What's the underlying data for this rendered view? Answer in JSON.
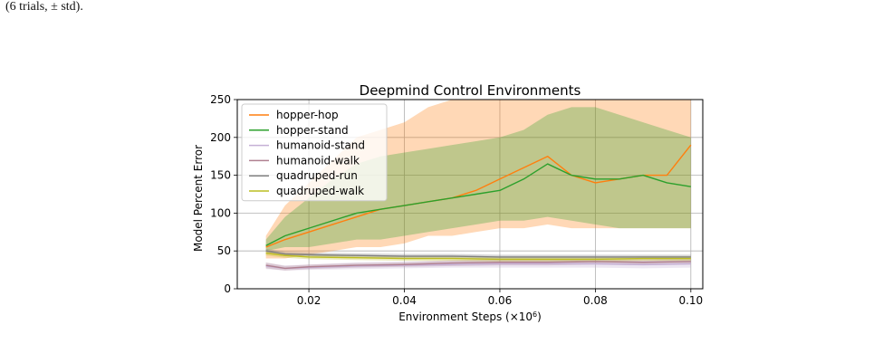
{
  "caption": {
    "top": "(6 trials, ± std)."
  },
  "chart_data": {
    "type": "line",
    "title": "Deepmind Control Environments",
    "xlabel": "Environment Steps (×10⁶)",
    "ylabel": "Model Percent Error",
    "xlim": [
      0.005,
      0.1025
    ],
    "ylim": [
      0,
      250
    ],
    "xticks": [
      0.02,
      0.04,
      0.06,
      0.08,
      0.1
    ],
    "xtick_labels": [
      "0.02",
      "0.04",
      "0.06",
      "0.08",
      "0.10"
    ],
    "yticks": [
      0,
      50,
      100,
      150,
      200,
      250
    ],
    "ytick_labels": [
      "0",
      "50",
      "100",
      "150",
      "200",
      "250"
    ],
    "grid": true,
    "legend_position": "top-left",
    "series": [
      {
        "name": "hopper-hop",
        "color": "#ff7f0e",
        "x": [
          0.011,
          0.015,
          0.02,
          0.025,
          0.03,
          0.035,
          0.04,
          0.045,
          0.05,
          0.055,
          0.06,
          0.065,
          0.07,
          0.075,
          0.08,
          0.085,
          0.09,
          0.095,
          0.1
        ],
        "values": [
          55,
          65,
          75,
          85,
          95,
          105,
          110,
          115,
          120,
          130,
          145,
          160,
          175,
          150,
          140,
          145,
          150,
          150,
          190
        ],
        "band_low": [
          40,
          40,
          45,
          50,
          55,
          55,
          60,
          70,
          70,
          75,
          80,
          80,
          85,
          80,
          80,
          80,
          80,
          80,
          80
        ],
        "band_high": [
          70,
          110,
          140,
          170,
          200,
          210,
          220,
          240,
          250,
          250,
          250,
          250,
          250,
          250,
          250,
          250,
          250,
          250,
          250
        ]
      },
      {
        "name": "hopper-stand",
        "color": "#2ca02c",
        "x": [
          0.011,
          0.015,
          0.02,
          0.025,
          0.03,
          0.035,
          0.04,
          0.045,
          0.05,
          0.055,
          0.06,
          0.065,
          0.07,
          0.075,
          0.08,
          0.085,
          0.09,
          0.095,
          0.1
        ],
        "values": [
          57,
          70,
          80,
          90,
          100,
          105,
          110,
          115,
          120,
          125,
          130,
          145,
          165,
          150,
          145,
          145,
          150,
          140,
          135
        ],
        "band_low": [
          50,
          55,
          55,
          60,
          65,
          65,
          70,
          75,
          80,
          85,
          90,
          90,
          95,
          90,
          85,
          80,
          80,
          80,
          80
        ],
        "band_high": [
          65,
          95,
          120,
          145,
          165,
          175,
          180,
          185,
          190,
          195,
          200,
          210,
          230,
          240,
          240,
          230,
          220,
          210,
          200
        ]
      },
      {
        "name": "humanoid-stand",
        "color": "#c5b0d5",
        "x": [
          0.011,
          0.015,
          0.02,
          0.03,
          0.04,
          0.05,
          0.06,
          0.07,
          0.08,
          0.09,
          0.1
        ],
        "values": [
          30,
          27,
          28,
          30,
          31,
          32,
          33,
          33,
          33,
          32,
          33
        ],
        "band_low": [
          26,
          24,
          25,
          26,
          27,
          28,
          28,
          28,
          28,
          27,
          28
        ],
        "band_high": [
          34,
          31,
          32,
          35,
          36,
          37,
          38,
          38,
          38,
          37,
          38
        ]
      },
      {
        "name": "humanoid-walk",
        "color": "#b08090",
        "x": [
          0.011,
          0.015,
          0.02,
          0.03,
          0.04,
          0.05,
          0.06,
          0.07,
          0.08,
          0.09,
          0.1
        ],
        "values": [
          31,
          27,
          29,
          31,
          32,
          34,
          35,
          35,
          36,
          35,
          36
        ],
        "band_low": [
          27,
          24,
          26,
          28,
          29,
          30,
          31,
          31,
          32,
          31,
          32
        ],
        "band_high": [
          35,
          30,
          32,
          34,
          35,
          38,
          39,
          39,
          40,
          39,
          40
        ]
      },
      {
        "name": "quadruped-run",
        "color": "#7f7f7f",
        "x": [
          0.011,
          0.015,
          0.02,
          0.03,
          0.04,
          0.05,
          0.06,
          0.07,
          0.08,
          0.09,
          0.1
        ],
        "values": [
          50,
          46,
          45,
          44,
          43,
          43,
          42,
          42,
          42,
          42,
          42
        ],
        "band_low": [
          47,
          43,
          42,
          41,
          40,
          40,
          39,
          39,
          39,
          39,
          39
        ],
        "band_high": [
          53,
          49,
          48,
          47,
          46,
          46,
          45,
          45,
          45,
          45,
          45
        ]
      },
      {
        "name": "quadruped-walk",
        "color": "#bcbd22",
        "x": [
          0.011,
          0.015,
          0.02,
          0.03,
          0.04,
          0.05,
          0.06,
          0.07,
          0.08,
          0.09,
          0.1
        ],
        "values": [
          47,
          44,
          42,
          41,
          40,
          40,
          39,
          39,
          39,
          40,
          40
        ],
        "band_low": [
          44,
          41,
          39,
          38,
          37,
          37,
          36,
          36,
          36,
          37,
          37
        ],
        "band_high": [
          50,
          47,
          45,
          44,
          43,
          43,
          42,
          42,
          42,
          43,
          43
        ]
      }
    ]
  }
}
